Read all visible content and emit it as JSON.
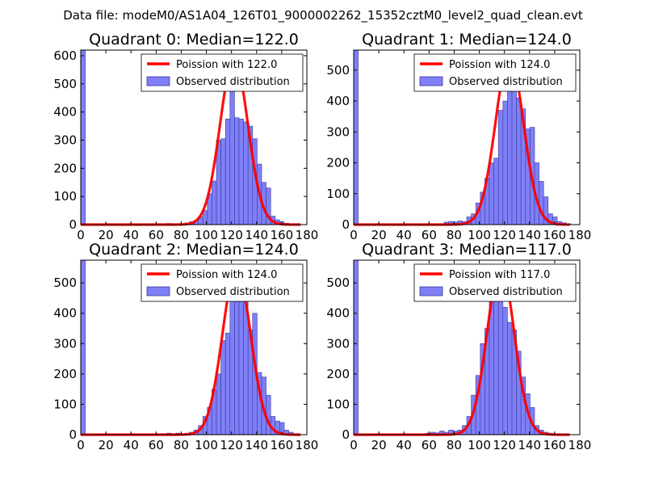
{
  "figure": {
    "suptitle": "Data file: modeM0/AS1A04_126T01_9000002262_15352cztM0_level2_quad_clean.evt"
  },
  "colors": {
    "bar_fill": "#7f7ff7",
    "bar_edge": "#3a3a99",
    "curve": "#ff0000",
    "legend_bar": "#7f7ff7"
  },
  "chart_data": [
    {
      "type": "bar",
      "title": "Quadrant 0: Median=122.0",
      "xlim": [
        0,
        180
      ],
      "ylim": [
        0,
        620
      ],
      "xticks": [
        0,
        20,
        40,
        60,
        80,
        100,
        120,
        140,
        160,
        180
      ],
      "yticks": [
        0,
        100,
        200,
        300,
        400,
        500,
        600
      ],
      "bin_width": 3.6,
      "bins": [
        {
          "x": 0,
          "v": 620
        },
        {
          "x": 68.4,
          "v": 4
        },
        {
          "x": 75.6,
          "v": 3
        },
        {
          "x": 79.2,
          "v": 3
        },
        {
          "x": 82.8,
          "v": 6
        },
        {
          "x": 86.4,
          "v": 10
        },
        {
          "x": 90,
          "v": 15
        },
        {
          "x": 93.6,
          "v": 28
        },
        {
          "x": 97.2,
          "v": 50
        },
        {
          "x": 100.8,
          "v": 110
        },
        {
          "x": 104.4,
          "v": 155
        },
        {
          "x": 108,
          "v": 300
        },
        {
          "x": 111.6,
          "v": 305
        },
        {
          "x": 115.2,
          "v": 375
        },
        {
          "x": 118.8,
          "v": 500
        },
        {
          "x": 122.4,
          "v": 380
        },
        {
          "x": 126,
          "v": 375
        },
        {
          "x": 129.6,
          "v": 365
        },
        {
          "x": 133.2,
          "v": 350
        },
        {
          "x": 136.8,
          "v": 305
        },
        {
          "x": 140.4,
          "v": 215
        },
        {
          "x": 144,
          "v": 150
        },
        {
          "x": 147.6,
          "v": 130
        },
        {
          "x": 151.2,
          "v": 30
        },
        {
          "x": 154.8,
          "v": 17
        },
        {
          "x": 158.4,
          "v": 10
        },
        {
          "x": 162,
          "v": 5
        },
        {
          "x": 165.6,
          "v": 3
        },
        {
          "x": 169.2,
          "v": 2
        }
      ],
      "poisson_lambda": 122.0,
      "poisson_scale": 590,
      "curve_xmax": 175,
      "legend": {
        "curve": "Poission with 122.0",
        "bars": "Observed distribution",
        "position": "top-right"
      }
    },
    {
      "type": "bar",
      "title": "Quadrant 1: Median=124.0",
      "xlim": [
        0,
        180
      ],
      "ylim": [
        0,
        565
      ],
      "xticks": [
        0,
        20,
        40,
        60,
        80,
        100,
        120,
        140,
        160,
        180
      ],
      "yticks": [
        0,
        100,
        200,
        300,
        400,
        500
      ],
      "bin_width": 3.6,
      "bins": [
        {
          "x": 0,
          "v": 565
        },
        {
          "x": 72,
          "v": 8
        },
        {
          "x": 75.6,
          "v": 10
        },
        {
          "x": 79.2,
          "v": 8
        },
        {
          "x": 82.8,
          "v": 12
        },
        {
          "x": 86.4,
          "v": 10
        },
        {
          "x": 90,
          "v": 25
        },
        {
          "x": 93.6,
          "v": 35
        },
        {
          "x": 97.2,
          "v": 70
        },
        {
          "x": 100.8,
          "v": 105
        },
        {
          "x": 104.4,
          "v": 150
        },
        {
          "x": 108,
          "v": 200
        },
        {
          "x": 111.6,
          "v": 215
        },
        {
          "x": 115.2,
          "v": 370
        },
        {
          "x": 118.8,
          "v": 400
        },
        {
          "x": 122.4,
          "v": 500
        },
        {
          "x": 126,
          "v": 520
        },
        {
          "x": 129.6,
          "v": 410
        },
        {
          "x": 133.2,
          "v": 375
        },
        {
          "x": 136.8,
          "v": 310
        },
        {
          "x": 140.4,
          "v": 315
        },
        {
          "x": 144,
          "v": 200
        },
        {
          "x": 147.6,
          "v": 140
        },
        {
          "x": 151.2,
          "v": 90
        },
        {
          "x": 154.8,
          "v": 35
        },
        {
          "x": 158.4,
          "v": 25
        },
        {
          "x": 162,
          "v": 10
        },
        {
          "x": 165.6,
          "v": 6
        },
        {
          "x": 169.2,
          "v": 3
        }
      ],
      "poisson_lambda": 124.0,
      "poisson_scale": 545,
      "curve_xmax": 172,
      "legend": {
        "curve": "Poission with 124.0",
        "bars": "Observed distribution",
        "position": "top-right"
      }
    },
    {
      "type": "bar",
      "title": "Quadrant 2: Median=124.0",
      "xlim": [
        0,
        180
      ],
      "ylim": [
        0,
        575
      ],
      "xticks": [
        0,
        20,
        40,
        60,
        80,
        100,
        120,
        140,
        160,
        180
      ],
      "yticks": [
        0,
        100,
        200,
        300,
        400,
        500
      ],
      "bin_width": 3.6,
      "bins": [
        {
          "x": 0,
          "v": 575
        },
        {
          "x": 68.4,
          "v": 5
        },
        {
          "x": 75.6,
          "v": 5
        },
        {
          "x": 82.8,
          "v": 5
        },
        {
          "x": 86.4,
          "v": 8
        },
        {
          "x": 90,
          "v": 15
        },
        {
          "x": 93.6,
          "v": 30
        },
        {
          "x": 97.2,
          "v": 60
        },
        {
          "x": 100.8,
          "v": 90
        },
        {
          "x": 104.4,
          "v": 150
        },
        {
          "x": 108,
          "v": 200
        },
        {
          "x": 111.6,
          "v": 310
        },
        {
          "x": 115.2,
          "v": 335
        },
        {
          "x": 118.8,
          "v": 470
        },
        {
          "x": 122.4,
          "v": 560
        },
        {
          "x": 126,
          "v": 440
        },
        {
          "x": 129.6,
          "v": 450
        },
        {
          "x": 133.2,
          "v": 345
        },
        {
          "x": 136.8,
          "v": 400
        },
        {
          "x": 140.4,
          "v": 205
        },
        {
          "x": 144,
          "v": 190
        },
        {
          "x": 147.6,
          "v": 130
        },
        {
          "x": 151.2,
          "v": 60
        },
        {
          "x": 154.8,
          "v": 45
        },
        {
          "x": 158.4,
          "v": 40
        },
        {
          "x": 162,
          "v": 15
        },
        {
          "x": 165.6,
          "v": 8
        },
        {
          "x": 169.2,
          "v": 3
        }
      ],
      "poisson_lambda": 124.0,
      "poisson_scale": 550,
      "curve_xmax": 175,
      "legend": {
        "curve": "Poission with 124.0",
        "bars": "Observed distribution",
        "position": "top-right"
      }
    },
    {
      "type": "bar",
      "title": "Quadrant 3: Median=117.0",
      "xlim": [
        0,
        180
      ],
      "ylim": [
        0,
        575
      ],
      "xticks": [
        0,
        20,
        40,
        60,
        80,
        100,
        120,
        140,
        160,
        180
      ],
      "yticks": [
        0,
        100,
        200,
        300,
        400,
        500
      ],
      "bin_width": 3.6,
      "bins": [
        {
          "x": 0,
          "v": 575
        },
        {
          "x": 57.6,
          "v": 5
        },
        {
          "x": 61.2,
          "v": 8
        },
        {
          "x": 64.8,
          "v": 6
        },
        {
          "x": 68.4,
          "v": 12
        },
        {
          "x": 72,
          "v": 8
        },
        {
          "x": 75.6,
          "v": 15
        },
        {
          "x": 79.2,
          "v": 12
        },
        {
          "x": 82.8,
          "v": 15
        },
        {
          "x": 86.4,
          "v": 30
        },
        {
          "x": 90,
          "v": 60
        },
        {
          "x": 93.6,
          "v": 130
        },
        {
          "x": 97.2,
          "v": 195
        },
        {
          "x": 100.8,
          "v": 300
        },
        {
          "x": 104.4,
          "v": 350
        },
        {
          "x": 108,
          "v": 450
        },
        {
          "x": 111.6,
          "v": 460
        },
        {
          "x": 115.2,
          "v": 555
        },
        {
          "x": 118.8,
          "v": 420
        },
        {
          "x": 122.4,
          "v": 370
        },
        {
          "x": 126,
          "v": 345
        },
        {
          "x": 129.6,
          "v": 275
        },
        {
          "x": 133.2,
          "v": 190
        },
        {
          "x": 136.8,
          "v": 135
        },
        {
          "x": 140.4,
          "v": 90
        },
        {
          "x": 144,
          "v": 30
        },
        {
          "x": 147.6,
          "v": 15
        },
        {
          "x": 151.2,
          "v": 8
        },
        {
          "x": 154.8,
          "v": 5
        },
        {
          "x": 158.4,
          "v": 3
        },
        {
          "x": 165.6,
          "v": 2
        }
      ],
      "poisson_lambda": 117.0,
      "poisson_scale": 555,
      "curve_xmax": 172,
      "legend": {
        "curve": "Poission with 117.0",
        "bars": "Observed distribution",
        "position": "top-right"
      }
    }
  ]
}
